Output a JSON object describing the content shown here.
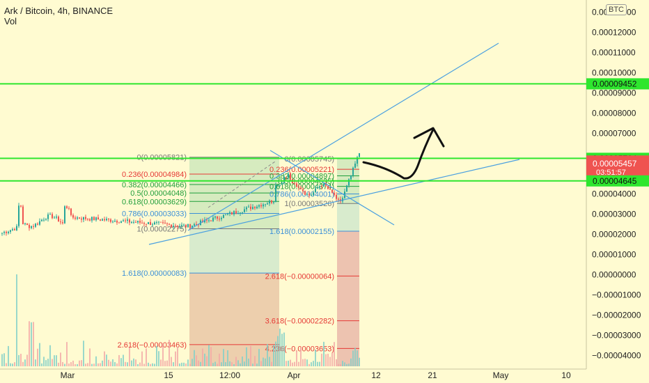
{
  "header": {
    "title": "Ark / Bitcoin, 4h, BINANCE",
    "volume_label": "Vol",
    "currency_badge": "BTC"
  },
  "colors": {
    "background": "#fffbd1",
    "trendline": "#4aa0e0",
    "horizontal_line": "#2ee62e",
    "price_tag": "#ef5350",
    "fib_green": "#1e9e3a",
    "fib_blue": "#3a8fd8",
    "fib_red": "#e53935",
    "fib_gray": "#777777"
  },
  "chart_data": {
    "type": "candlestick",
    "symbol": "Ark / Bitcoin",
    "interval": "4h",
    "exchange": "BINANCE",
    "y_axis": {
      "range": [
        -4e-05,
        0.00013
      ],
      "ticks": [
        "0.00013000",
        "0.00012000",
        "0.00011000",
        "0.00010000",
        "0.00009000",
        "0.00008000",
        "0.00007000",
        "0.00005000",
        "0.00004000",
        "0.00003000",
        "0.00002000",
        "0.00001000",
        "0.00000000",
        "−0.00001000",
        "−0.00002000",
        "−0.00003000",
        "−0.00004000"
      ]
    },
    "x_axis": {
      "tick_labels": [
        "Mar",
        "15",
        "12:00",
        "Apr",
        "12",
        "21",
        "May",
        "10"
      ]
    },
    "price_tags": [
      {
        "label": "0.00009452",
        "value": 9.452e-05,
        "kind": "level"
      },
      {
        "label": "0.00005764",
        "value": 5.764e-05,
        "kind": "level"
      },
      {
        "label": "0.00005457",
        "value": 5.457e-05,
        "kind": "current",
        "countdown": "03:51:57"
      },
      {
        "label": "0.00004645",
        "value": 4.645e-05,
        "kind": "level"
      }
    ],
    "horizontal_levels": [
      9.452e-05,
      5.764e-05,
      4.645e-05
    ],
    "fib_left": [
      {
        "label": "0(0.00005821)",
        "ratio": 0,
        "value": 5.821e-05,
        "color": "gray"
      },
      {
        "label": "0.236(0.00004984)",
        "ratio": 0.236,
        "value": 4.984e-05,
        "color": "red"
      },
      {
        "label": "0.382(0.00004466)",
        "ratio": 0.382,
        "value": 4.466e-05,
        "color": "green"
      },
      {
        "label": "0.5(0.00004048)",
        "ratio": 0.5,
        "value": 4.048e-05,
        "color": "green"
      },
      {
        "label": "0.618(0.00003629)",
        "ratio": 0.618,
        "value": 3.629e-05,
        "color": "green"
      },
      {
        "label": "0.786(0.00003033)",
        "ratio": 0.786,
        "value": 3.033e-05,
        "color": "blue"
      },
      {
        "label": "1(0.00002275)",
        "ratio": 1,
        "value": 2.275e-05,
        "color": "gray"
      },
      {
        "label": "1.618(0.00000083)",
        "ratio": 1.618,
        "value": 8.3e-07,
        "color": "blue"
      },
      {
        "label": "2.618(−0.00003463)",
        "ratio": 2.618,
        "value": -3.463e-05,
        "color": "red"
      }
    ],
    "fib_right": [
      {
        "label": "0(0.00005745)",
        "ratio": 0,
        "value": 5.745e-05,
        "color": "gray"
      },
      {
        "label": "0.236(0.00005221)",
        "ratio": 0.236,
        "value": 5.221e-05,
        "color": "red"
      },
      {
        "label": "0.382(0.00004897)",
        "ratio": 0.382,
        "value": 4.897e-05,
        "color": "green"
      },
      {
        "label": "0.5(0.00004635)",
        "ratio": 0.5,
        "value": 4.635e-05,
        "color": "green"
      },
      {
        "label": "0.618(0.00004374)",
        "ratio": 0.618,
        "value": 4.374e-05,
        "color": "green"
      },
      {
        "label": "0.786(0.00004001)",
        "ratio": 0.786,
        "value": 4.001e-05,
        "color": "blue"
      },
      {
        "label": "1(0.00003526)",
        "ratio": 1,
        "value": 3.526e-05,
        "color": "gray"
      },
      {
        "label": "1.618(0.00002155)",
        "ratio": 1.618,
        "value": 2.155e-05,
        "color": "blue"
      },
      {
        "label": "2.618(−0.00000064)",
        "ratio": 2.618,
        "value": -6.4e-07,
        "color": "red"
      },
      {
        "label": "3.618(−0.00002282)",
        "ratio": 3.618,
        "value": -2.282e-05,
        "color": "red"
      },
      {
        "label": "4.236(−0.00003653)",
        "ratio": 4.236,
        "value": -3.653e-05,
        "color": "red"
      }
    ]
  }
}
